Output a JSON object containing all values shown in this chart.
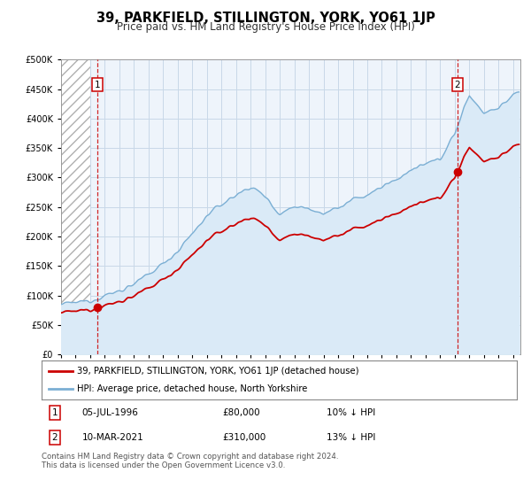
{
  "title": "39, PARKFIELD, STILLINGTON, YORK, YO61 1JP",
  "subtitle": "Price paid vs. HM Land Registry's House Price Index (HPI)",
  "ylabel_values": [
    0,
    50000,
    100000,
    150000,
    200000,
    250000,
    300000,
    350000,
    400000,
    450000,
    500000
  ],
  "ylabel_labels": [
    "£0",
    "£50K",
    "£100K",
    "£150K",
    "£200K",
    "£250K",
    "£300K",
    "£350K",
    "£400K",
    "£450K",
    "£500K"
  ],
  "ylim": [
    0,
    500000
  ],
  "xmin": 1994.0,
  "xmax": 2025.5,
  "sale1_x": 1996.51,
  "sale1_y": 80000,
  "sale2_x": 2021.19,
  "sale2_y": 310000,
  "line_color_property": "#cc0000",
  "line_color_hpi_line": "#7bafd4",
  "line_color_hpi_fill": "#daeaf7",
  "legend_label1": "39, PARKFIELD, STILLINGTON, YORK, YO61 1JP (detached house)",
  "legend_label2": "HPI: Average price, detached house, North Yorkshire",
  "sale1_date": "05-JUL-1996",
  "sale1_price": "£80,000",
  "sale1_pct": "10% ↓ HPI",
  "sale2_date": "10-MAR-2021",
  "sale2_price": "£310,000",
  "sale2_pct": "13% ↓ HPI",
  "footer": "Contains HM Land Registry data © Crown copyright and database right 2024.\nThis data is licensed under the Open Government Licence v3.0.",
  "background_color": "#ffffff",
  "plot_bg_color": "#eef4fb",
  "grid_color": "#c8d8e8",
  "title_fontsize": 10.5,
  "subtitle_fontsize": 8.5,
  "tick_fontsize": 7
}
